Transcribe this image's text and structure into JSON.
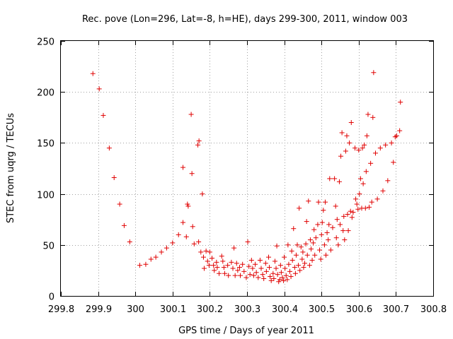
{
  "chart_data": {
    "type": "scatter",
    "title": "Rec. pove (Lon=296, Lat=-8, h=HE), days 299-300, 2011, window 003",
    "xlabel": "GPS time / Days of year 2011",
    "ylabel": "STEC from uqrg / TECUs",
    "xlim": [
      299.8,
      300.8
    ],
    "ylim": [
      0,
      250
    ],
    "xticks": [
      "299.8",
      "299.9",
      "300",
      "300.1",
      "300.2",
      "300.3",
      "300.4",
      "300.5",
      "300.6",
      "300.7",
      "300.8"
    ],
    "yticks": [
      "0",
      "50",
      "100",
      "150",
      "200",
      "250"
    ],
    "grid": true,
    "marker_color": "#e00000",
    "series": [
      {
        "name": "STEC",
        "points": [
          [
            299.886,
            218
          ],
          [
            299.903,
            203
          ],
          [
            299.914,
            177
          ],
          [
            299.93,
            145
          ],
          [
            299.943,
            116
          ],
          [
            299.958,
            90
          ],
          [
            299.97,
            69
          ],
          [
            299.985,
            53
          ],
          [
            300.012,
            30
          ],
          [
            300.028,
            31
          ],
          [
            300.042,
            36
          ],
          [
            300.055,
            38
          ],
          [
            300.07,
            43
          ],
          [
            300.084,
            47
          ],
          [
            300.1,
            52
          ],
          [
            300.116,
            60
          ],
          [
            300.128,
            72
          ],
          [
            300.128,
            126
          ],
          [
            300.137,
            58
          ],
          [
            300.14,
            90
          ],
          [
            300.142,
            88
          ],
          [
            300.15,
            178
          ],
          [
            300.152,
            120
          ],
          [
            300.154,
            68
          ],
          [
            300.158,
            51
          ],
          [
            300.168,
            148
          ],
          [
            300.171,
            152
          ],
          [
            300.17,
            53
          ],
          [
            300.176,
            43
          ],
          [
            300.18,
            100
          ],
          [
            300.183,
            38
          ],
          [
            300.185,
            27
          ],
          [
            300.19,
            44
          ],
          [
            300.194,
            34
          ],
          [
            300.198,
            30
          ],
          [
            300.2,
            43
          ],
          [
            300.206,
            37
          ],
          [
            300.21,
            30
          ],
          [
            300.212,
            25
          ],
          [
            300.218,
            33
          ],
          [
            300.22,
            28
          ],
          [
            300.225,
            22
          ],
          [
            300.232,
            39
          ],
          [
            300.235,
            34
          ],
          [
            300.238,
            28
          ],
          [
            300.24,
            22
          ],
          [
            300.248,
            30
          ],
          [
            300.25,
            20
          ],
          [
            300.258,
            33
          ],
          [
            300.262,
            27
          ],
          [
            300.265,
            47
          ],
          [
            300.268,
            20
          ],
          [
            300.272,
            32
          ],
          [
            300.275,
            25
          ],
          [
            300.28,
            28
          ],
          [
            300.282,
            20
          ],
          [
            300.288,
            31
          ],
          [
            300.292,
            24
          ],
          [
            300.298,
            18
          ],
          [
            300.302,
            53
          ],
          [
            300.305,
            29
          ],
          [
            300.308,
            21
          ],
          [
            300.312,
            35
          ],
          [
            300.315,
            27
          ],
          [
            300.318,
            20
          ],
          [
            300.322,
            31
          ],
          [
            300.325,
            23
          ],
          [
            300.33,
            18
          ],
          [
            300.335,
            35
          ],
          [
            300.338,
            27
          ],
          [
            300.342,
            21
          ],
          [
            300.345,
            17
          ],
          [
            300.35,
            32
          ],
          [
            300.352,
            24
          ],
          [
            300.358,
            38
          ],
          [
            300.36,
            28
          ],
          [
            300.362,
            19
          ],
          [
            300.365,
            15
          ],
          [
            300.37,
            22
          ],
          [
            300.372,
            17
          ],
          [
            300.375,
            34
          ],
          [
            300.378,
            27
          ],
          [
            300.38,
            49
          ],
          [
            300.382,
            21
          ],
          [
            300.385,
            14
          ],
          [
            300.388,
            16
          ],
          [
            300.39,
            30
          ],
          [
            300.392,
            23
          ],
          [
            300.395,
            18
          ],
          [
            300.398,
            15
          ],
          [
            300.4,
            38
          ],
          [
            300.402,
            27
          ],
          [
            300.405,
            20
          ],
          [
            300.408,
            16
          ],
          [
            300.41,
            50
          ],
          [
            300.412,
            31
          ],
          [
            300.415,
            24
          ],
          [
            300.418,
            19
          ],
          [
            300.42,
            44
          ],
          [
            300.422,
            35
          ],
          [
            300.425,
            66
          ],
          [
            300.428,
            28
          ],
          [
            300.43,
            22
          ],
          [
            300.432,
            40
          ],
          [
            300.435,
            50
          ],
          [
            300.438,
            30
          ],
          [
            300.44,
            86
          ],
          [
            300.442,
            25
          ],
          [
            300.445,
            48
          ],
          [
            300.448,
            36
          ],
          [
            300.45,
            43
          ],
          [
            300.452,
            28
          ],
          [
            300.455,
            32
          ],
          [
            300.458,
            51
          ],
          [
            300.46,
            73
          ],
          [
            300.462,
            40
          ],
          [
            300.465,
            93
          ],
          [
            300.468,
            30
          ],
          [
            300.47,
            55
          ],
          [
            300.472,
            46
          ],
          [
            300.475,
            35
          ],
          [
            300.478,
            52
          ],
          [
            300.48,
            65
          ],
          [
            300.482,
            40
          ],
          [
            300.485,
            57
          ],
          [
            300.49,
            70
          ],
          [
            300.492,
            92
          ],
          [
            300.495,
            45
          ],
          [
            300.498,
            36
          ],
          [
            300.5,
            60
          ],
          [
            300.502,
            72
          ],
          [
            300.505,
            84
          ],
          [
            300.508,
            50
          ],
          [
            300.51,
            92
          ],
          [
            300.512,
            40
          ],
          [
            300.515,
            62
          ],
          [
            300.518,
            55
          ],
          [
            300.52,
            70
          ],
          [
            300.522,
            115
          ],
          [
            300.525,
            45
          ],
          [
            300.53,
            67
          ],
          [
            300.535,
            115
          ],
          [
            300.538,
            88
          ],
          [
            300.54,
            57
          ],
          [
            300.542,
            75
          ],
          [
            300.545,
            50
          ],
          [
            300.548,
            112
          ],
          [
            300.55,
            70
          ],
          [
            300.552,
            137
          ],
          [
            300.555,
            160
          ],
          [
            300.558,
            64
          ],
          [
            300.56,
            78
          ],
          [
            300.562,
            55
          ],
          [
            300.565,
            142
          ],
          [
            300.568,
            157
          ],
          [
            300.57,
            80
          ],
          [
            300.572,
            64
          ],
          [
            300.575,
            150
          ],
          [
            300.578,
            83
          ],
          [
            300.58,
            170
          ],
          [
            300.582,
            77
          ],
          [
            300.585,
            82
          ],
          [
            300.59,
            145
          ],
          [
            300.592,
            95
          ],
          [
            300.595,
            90
          ],
          [
            300.598,
            85
          ],
          [
            300.6,
            143
          ],
          [
            300.602,
            100
          ],
          [
            300.605,
            115
          ],
          [
            300.608,
            86
          ],
          [
            300.61,
            145
          ],
          [
            300.612,
            110
          ],
          [
            300.615,
            148
          ],
          [
            300.618,
            86
          ],
          [
            300.62,
            122
          ],
          [
            300.622,
            157
          ],
          [
            300.625,
            178
          ],
          [
            300.628,
            87
          ],
          [
            300.632,
            130
          ],
          [
            300.635,
            92
          ],
          [
            300.638,
            175
          ],
          [
            300.64,
            219
          ],
          [
            300.645,
            140
          ],
          [
            300.65,
            95
          ],
          [
            300.658,
            145
          ],
          [
            300.665,
            103
          ],
          [
            300.672,
            148
          ],
          [
            300.678,
            113
          ],
          [
            300.688,
            150
          ],
          [
            300.693,
            131
          ],
          [
            300.698,
            156
          ],
          [
            300.702,
            157
          ],
          [
            300.71,
            162
          ],
          [
            300.712,
            190
          ]
        ]
      }
    ]
  }
}
